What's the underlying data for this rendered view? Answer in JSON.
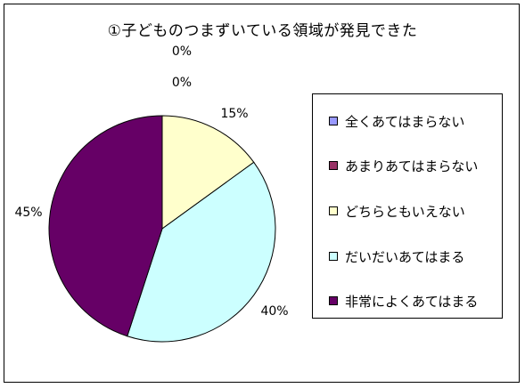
{
  "chart_data": {
    "type": "pie",
    "title": "①子どものつまずいている領域が発見できた",
    "categories": [
      "全くあてはまらない",
      "あまりあてはまらない",
      "どちらともいえない",
      "だいだいあてはまる",
      "非常によくあてはまる"
    ],
    "values": [
      0,
      0,
      15,
      40,
      45
    ],
    "data_labels": [
      "0%",
      "0%",
      "15%",
      "40%",
      "45%"
    ],
    "colors": [
      "#9999ff",
      "#993366",
      "#ffffcc",
      "#ccffff",
      "#660066"
    ],
    "legend_position": "right"
  }
}
